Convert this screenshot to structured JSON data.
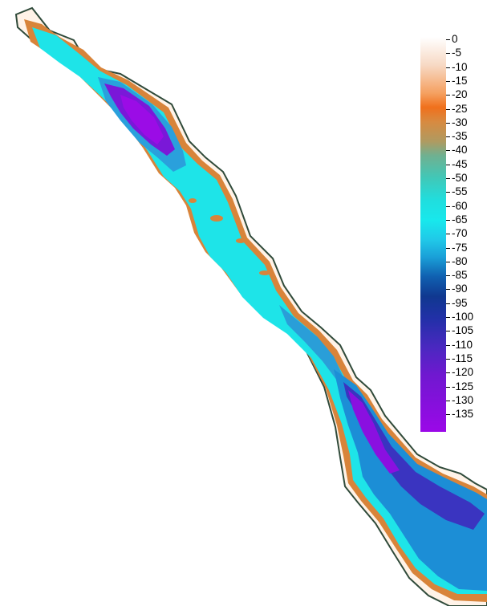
{
  "map": {
    "colors": {
      "shoreline": "#2f4a3a",
      "deep": "#8a10e0",
      "mid_deep": "#2540c0",
      "mid": "#1a9ad8",
      "shelf": "#18e6e6",
      "shallow": "#f07a20",
      "surface": "#ffffff"
    }
  },
  "legend": {
    "ticks": [
      "0",
      "-5",
      "-10",
      "-15",
      "-20",
      "-25",
      "-30",
      "-35",
      "-40",
      "-45",
      "-50",
      "-55",
      "-60",
      "-65",
      "-70",
      "-75",
      "-80",
      "-85",
      "-90",
      "-95",
      "-100",
      "-105",
      "-110",
      "-115",
      "-120",
      "-125",
      "-130",
      "-135"
    ],
    "colorbar_stops": [
      {
        "value": 0,
        "color": "#ffffff"
      },
      {
        "value": -10,
        "color": "#f7d9c4"
      },
      {
        "value": -20,
        "color": "#f5a060"
      },
      {
        "value": -25,
        "color": "#f0701c"
      },
      {
        "value": -30,
        "color": "#d88a40"
      },
      {
        "value": -37,
        "color": "#b09a60"
      },
      {
        "value": -42,
        "color": "#70b090"
      },
      {
        "value": -50,
        "color": "#40c8b8"
      },
      {
        "value": -58,
        "color": "#20dede"
      },
      {
        "value": -65,
        "color": "#18e8ec"
      },
      {
        "value": -72,
        "color": "#20c8e8"
      },
      {
        "value": -78,
        "color": "#1aa0d8"
      },
      {
        "value": -85,
        "color": "#1060b0"
      },
      {
        "value": -92,
        "color": "#103890"
      },
      {
        "value": -100,
        "color": "#2230a8"
      },
      {
        "value": -110,
        "color": "#4a28c0"
      },
      {
        "value": -120,
        "color": "#7018d0"
      },
      {
        "value": -140,
        "color": "#9b08e8"
      }
    ]
  }
}
